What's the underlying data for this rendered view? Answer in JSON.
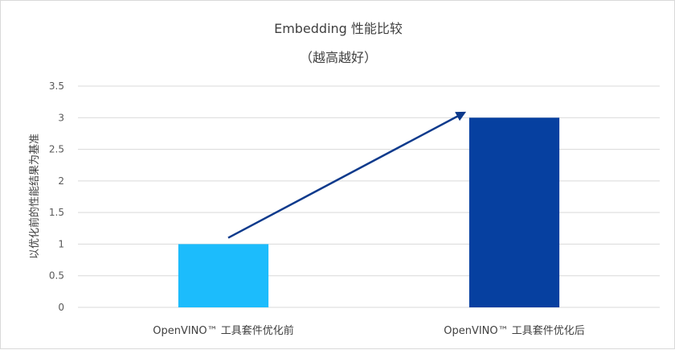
{
  "chart_data": {
    "type": "bar",
    "title": "Embedding 性能比较",
    "subtitle": "（越高越好）",
    "xlabel": "",
    "ylabel": "以优化前的性能结果为基准",
    "categories": [
      "OpenVINO™ 工具套件优化前",
      "OpenVINO™ 工具套件优化后"
    ],
    "values": [
      1,
      3
    ],
    "bar_colors": [
      "#1cbcfc",
      "#0640a0"
    ],
    "ylim": [
      0,
      3.5
    ],
    "yticks": [
      0,
      0.5,
      1,
      1.5,
      2,
      2.5,
      3,
      3.5
    ],
    "ytick_labels": [
      "0",
      "0.5",
      "1",
      "1.5",
      "2",
      "2.5",
      "3",
      "3.5"
    ],
    "grid": true,
    "legend": "none",
    "annotations": [
      {
        "type": "arrow",
        "from_category": 0,
        "from_value": 1.1,
        "to_category": 1,
        "to_value": 3.08,
        "color": "#0d3a8c"
      }
    ],
    "gridline_color": "#d9d9d9"
  }
}
